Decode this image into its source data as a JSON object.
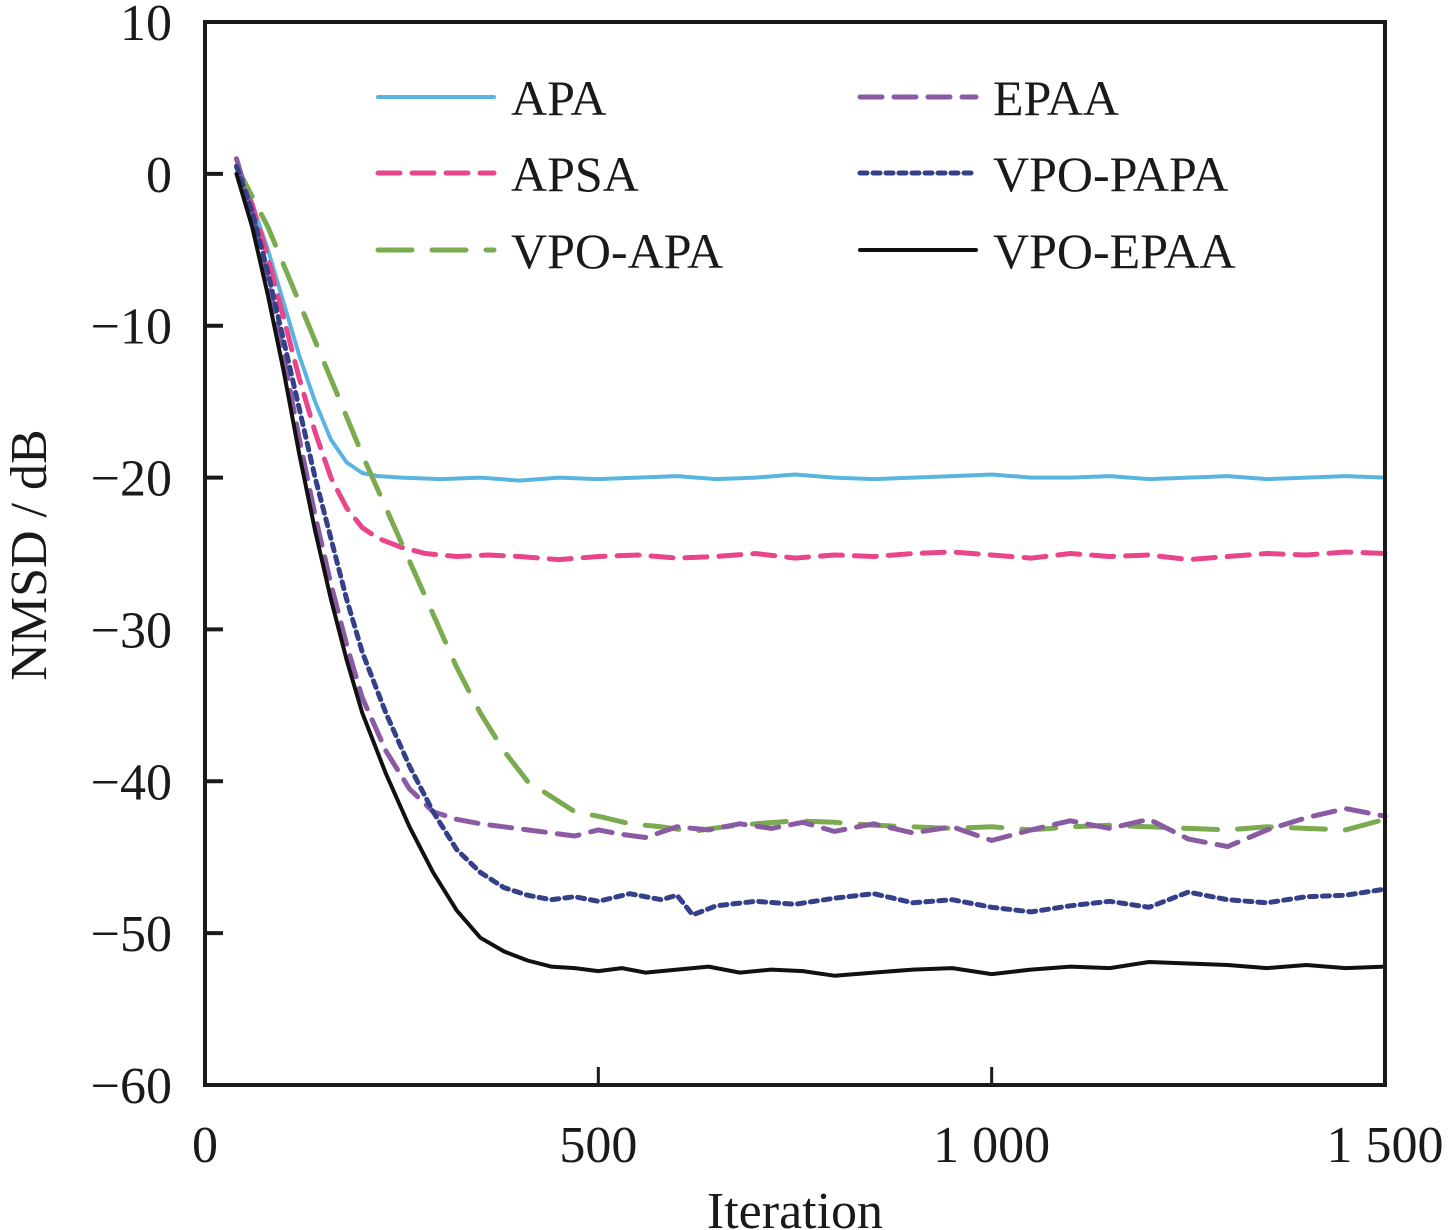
{
  "chart_data": {
    "type": "line",
    "title": "",
    "xlabel": "Iteration",
    "ylabel": "NMSD / dB",
    "xlim": [
      0,
      1500
    ],
    "ylim": [
      -60,
      10
    ],
    "xticks": [
      0,
      500,
      1000,
      1500
    ],
    "xtick_labels": [
      "0",
      "500",
      "1 000",
      "1 500"
    ],
    "yticks": [
      10,
      0,
      -10,
      -20,
      -30,
      -40,
      -50,
      -60
    ],
    "ytick_labels": [
      "10",
      "0",
      "−10",
      "−20",
      "−30",
      "−40",
      "−50",
      "−60"
    ],
    "grid": false,
    "legend_position": "top",
    "series": [
      {
        "name": "APA",
        "color": "#5ab4e0",
        "dash": "solid",
        "x": [
          40,
          60,
          80,
          100,
          120,
          140,
          160,
          180,
          200,
          220,
          250,
          300,
          350,
          400,
          450,
          500,
          550,
          600,
          650,
          700,
          750,
          800,
          850,
          900,
          950,
          1000,
          1050,
          1100,
          1150,
          1200,
          1250,
          1300,
          1350,
          1400,
          1450,
          1500
        ],
        "y": [
          0.5,
          -2.0,
          -5.0,
          -8.5,
          -12.0,
          -15.0,
          -17.5,
          -19.0,
          -19.7,
          -19.9,
          -20.0,
          -20.1,
          -20.0,
          -20.2,
          -20.0,
          -20.1,
          -20.0,
          -19.9,
          -20.1,
          -20.0,
          -19.8,
          -20.0,
          -20.1,
          -20.0,
          -19.9,
          -19.8,
          -20.0,
          -20.0,
          -19.9,
          -20.1,
          -20.0,
          -19.9,
          -20.1,
          -20.0,
          -19.9,
          -20.0
        ]
      },
      {
        "name": "APSA",
        "color": "#e8458b",
        "dash": "dashed",
        "x": [
          40,
          60,
          80,
          100,
          120,
          140,
          160,
          180,
          200,
          220,
          250,
          280,
          320,
          360,
          400,
          450,
          500,
          550,
          600,
          650,
          700,
          750,
          800,
          850,
          900,
          950,
          1000,
          1050,
          1100,
          1150,
          1200,
          1250,
          1300,
          1350,
          1400,
          1450,
          1500
        ],
        "y": [
          0.5,
          -2.0,
          -5.5,
          -9.5,
          -13.5,
          -17.0,
          -20.0,
          -22.0,
          -23.3,
          -24.0,
          -24.6,
          -25.0,
          -25.2,
          -25.1,
          -25.2,
          -25.4,
          -25.2,
          -25.1,
          -25.3,
          -25.2,
          -25.0,
          -25.3,
          -25.1,
          -25.2,
          -25.0,
          -24.9,
          -25.1,
          -25.3,
          -25.0,
          -25.2,
          -25.1,
          -25.4,
          -25.2,
          -25.0,
          -25.1,
          -24.9,
          -25.0
        ]
      },
      {
        "name": "VPO-APA",
        "color": "#7aab4f",
        "dash": "longdash",
        "x": [
          40,
          60,
          80,
          100,
          120,
          140,
          160,
          180,
          200,
          230,
          260,
          290,
          320,
          350,
          380,
          410,
          440,
          470,
          500,
          540,
          580,
          620,
          660,
          700,
          750,
          800,
          850,
          900,
          950,
          1000,
          1050,
          1100,
          1150,
          1200,
          1250,
          1300,
          1350,
          1400,
          1450,
          1500
        ],
        "y": [
          0.5,
          -1.5,
          -3.5,
          -6.0,
          -8.5,
          -11.0,
          -13.5,
          -16.0,
          -18.5,
          -22.0,
          -25.5,
          -29.0,
          -32.5,
          -35.5,
          -38.0,
          -40.0,
          -41.0,
          -42.0,
          -42.3,
          -42.8,
          -43.0,
          -43.3,
          -43.0,
          -42.8,
          -42.6,
          -42.7,
          -42.9,
          -43.0,
          -43.1,
          -43.0,
          -43.2,
          -43.0,
          -42.9,
          -43.0,
          -43.1,
          -43.2,
          -43.0,
          -43.1,
          -43.2,
          -42.5
        ]
      },
      {
        "name": "EPAA",
        "color": "#8a5aa3",
        "dash": "dashed",
        "x": [
          40,
          60,
          80,
          100,
          120,
          140,
          160,
          180,
          200,
          230,
          260,
          290,
          320,
          350,
          380,
          410,
          440,
          470,
          500,
          530,
          560,
          600,
          640,
          680,
          720,
          760,
          800,
          850,
          900,
          950,
          1000,
          1050,
          1100,
          1150,
          1200,
          1250,
          1300,
          1350,
          1400,
          1450,
          1500
        ],
        "y": [
          1.0,
          -2.5,
          -7.0,
          -12.0,
          -17.5,
          -22.5,
          -27.0,
          -31.0,
          -34.5,
          -38.0,
          -40.5,
          -42.0,
          -42.5,
          -42.8,
          -43.0,
          -43.2,
          -43.4,
          -43.6,
          -43.2,
          -43.5,
          -43.7,
          -43.0,
          -43.2,
          -42.8,
          -43.1,
          -42.7,
          -43.3,
          -42.8,
          -43.4,
          -43.0,
          -43.9,
          -43.2,
          -42.6,
          -43.1,
          -42.5,
          -43.8,
          -44.3,
          -43.2,
          -42.4,
          -41.8,
          -42.3
        ]
      },
      {
        "name": "VPO-PAPA",
        "color": "#34418a",
        "dash": "dotted",
        "x": [
          40,
          60,
          80,
          100,
          120,
          140,
          160,
          180,
          200,
          230,
          260,
          290,
          320,
          350,
          380,
          410,
          440,
          470,
          500,
          540,
          580,
          600,
          620,
          650,
          700,
          750,
          800,
          850,
          900,
          950,
          1000,
          1050,
          1100,
          1150,
          1200,
          1250,
          1300,
          1350,
          1400,
          1450,
          1500
        ],
        "y": [
          0.5,
          -2.5,
          -6.5,
          -11.0,
          -15.5,
          -20.0,
          -24.0,
          -28.0,
          -31.5,
          -35.5,
          -39.0,
          -42.0,
          -44.5,
          -46.0,
          -47.0,
          -47.5,
          -47.8,
          -47.6,
          -47.9,
          -47.4,
          -47.8,
          -47.5,
          -48.8,
          -48.2,
          -47.9,
          -48.1,
          -47.7,
          -47.4,
          -48.0,
          -47.8,
          -48.3,
          -48.6,
          -48.2,
          -47.9,
          -48.3,
          -47.3,
          -47.8,
          -48.0,
          -47.6,
          -47.5,
          -47.1
        ]
      },
      {
        "name": "VPO-EPAA",
        "color": "#111111",
        "dash": "solid",
        "x": [
          40,
          60,
          80,
          100,
          120,
          140,
          160,
          180,
          200,
          230,
          260,
          290,
          320,
          350,
          380,
          410,
          440,
          470,
          500,
          530,
          560,
          600,
          640,
          680,
          720,
          760,
          800,
          850,
          900,
          950,
          1000,
          1050,
          1100,
          1150,
          1200,
          1250,
          1300,
          1350,
          1400,
          1450,
          1500
        ],
        "y": [
          0.0,
          -3.5,
          -8.0,
          -13.0,
          -18.5,
          -23.5,
          -28.0,
          -32.0,
          -35.5,
          -39.5,
          -43.0,
          -46.0,
          -48.5,
          -50.3,
          -51.2,
          -51.8,
          -52.2,
          -52.3,
          -52.5,
          -52.3,
          -52.6,
          -52.4,
          -52.2,
          -52.6,
          -52.4,
          -52.5,
          -52.8,
          -52.6,
          -52.4,
          -52.3,
          -52.7,
          -52.4,
          -52.2,
          -52.3,
          -51.9,
          -52.0,
          -52.1,
          -52.3,
          -52.1,
          -52.3,
          -52.2
        ]
      }
    ]
  }
}
